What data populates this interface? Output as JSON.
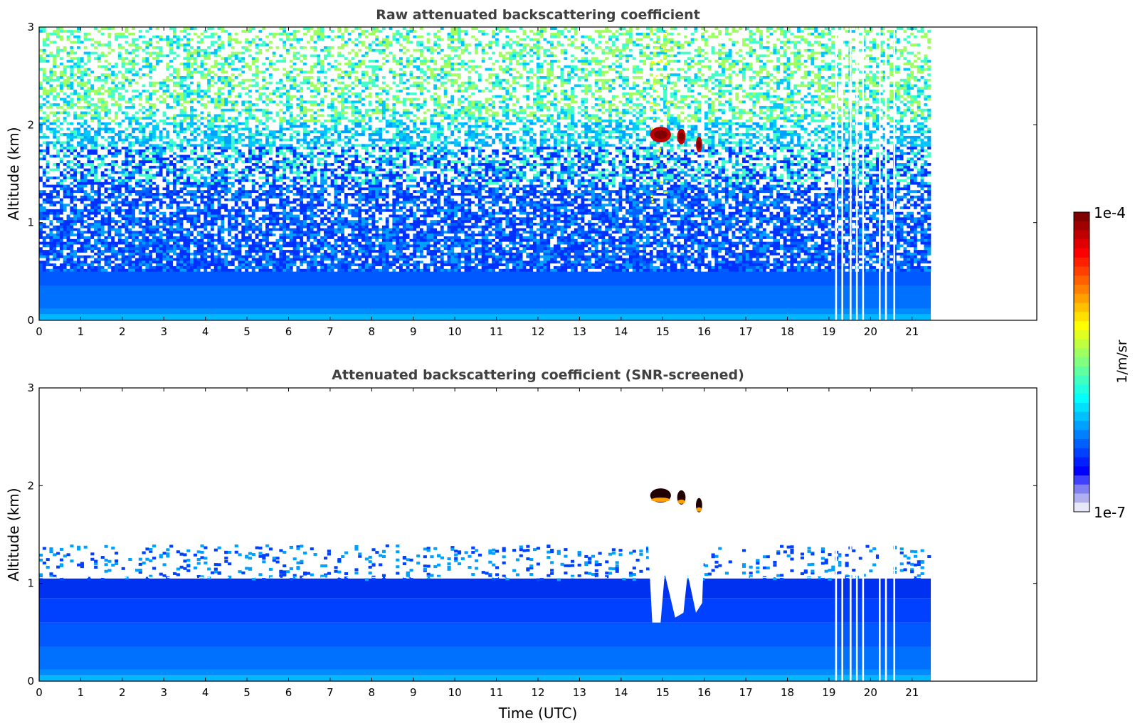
{
  "chart_data": [
    {
      "type": "heatmap",
      "title": "Raw attenuated backscattering coefficient",
      "xlabel": "",
      "ylabel": "Altitude (km)",
      "xlim": [
        0,
        24
      ],
      "ylim": [
        0,
        3
      ],
      "xticks": [
        0,
        1,
        2,
        3,
        4,
        5,
        6,
        7,
        8,
        9,
        10,
        11,
        12,
        13,
        14,
        15,
        16,
        17,
        18,
        19,
        20,
        21
      ],
      "yticks": [
        0,
        1,
        2,
        3
      ],
      "data_extent_hours": [
        0,
        21.45
      ],
      "noise_floor_km": 0.6,
      "features": [
        {
          "kind": "cloud",
          "t_start": 14.7,
          "t_end": 15.2,
          "alt_km": 1.9,
          "value": "1e-4"
        },
        {
          "kind": "cloud",
          "t_start": 15.35,
          "t_end": 15.55,
          "alt_km": 1.88,
          "value": "1e-4"
        },
        {
          "kind": "cloud",
          "t_start": 15.8,
          "t_end": 15.95,
          "alt_km": 1.8,
          "value": "1e-4"
        },
        {
          "kind": "gap",
          "times": [
            19.15,
            19.3,
            19.5,
            19.65,
            19.8,
            20.2,
            20.35,
            20.55
          ]
        }
      ]
    },
    {
      "type": "heatmap",
      "title": "Attenuated backscattering coefficient (SNR-screened)",
      "xlabel": "Time (UTC)",
      "ylabel": "Altitude (km)",
      "xlim": [
        0,
        24
      ],
      "ylim": [
        0,
        3
      ],
      "xticks": [
        0,
        1,
        2,
        3,
        4,
        5,
        6,
        7,
        8,
        9,
        10,
        11,
        12,
        13,
        14,
        15,
        16,
        17,
        18,
        19,
        20,
        21
      ],
      "yticks": [
        0,
        1,
        2,
        3
      ],
      "data_extent_hours": [
        0,
        21.45
      ],
      "boundary_layer_top_km": 1.05,
      "features": [
        {
          "kind": "cloud",
          "t_start": 14.7,
          "t_end": 15.2,
          "alt_km": 1.9,
          "value": "1e-4"
        },
        {
          "kind": "cloud",
          "t_start": 15.35,
          "t_end": 15.55,
          "alt_km": 1.88,
          "value": "1e-4"
        },
        {
          "kind": "cloud",
          "t_start": 15.8,
          "t_end": 15.95,
          "alt_km": 1.8,
          "value": "1e-4"
        },
        {
          "kind": "clear_below_cloud",
          "t_start": 14.65,
          "t_end": 16.0,
          "alt_bottom_km": 0.6
        }
      ]
    }
  ],
  "colorbar": {
    "label": "1/m/sr",
    "min_label": "1e-7",
    "max_label": "1e-4",
    "scale": "log",
    "colormap": "jet",
    "colors": [
      "#e8e8f8",
      "#0000ff",
      "#0080ff",
      "#00ffff",
      "#80ff80",
      "#ffff00",
      "#ff8000",
      "#ff0000",
      "#800000"
    ]
  },
  "labels": {
    "title1": "Raw attenuated backscattering coefficient",
    "title2": "Attenuated backscattering coefficient (SNR-screened)",
    "ylabel": "Altitude (km)",
    "xlabel": "Time (UTC)",
    "cb_top": "1e-4",
    "cb_bottom": "1e-7",
    "cb_label": "1/m/sr"
  }
}
